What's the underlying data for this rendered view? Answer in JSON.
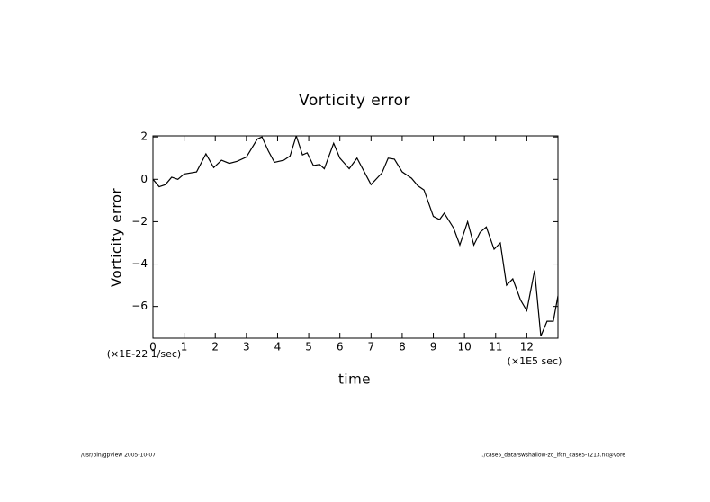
{
  "chart_data": {
    "type": "line",
    "title": "Vorticity error",
    "x_label": "time",
    "y_label": "Vorticity error",
    "x_unit": "(×1E5 sec)",
    "y_unit": "(×1E-22 1/sec)",
    "footer_left": "/usr/bin/gpview  2005-10-07",
    "footer_right": "../case5_data/swshallow-zd_lfcn_case5-T213.nc@vore",
    "xlim": [
      0,
      13
    ],
    "ylim": [
      -7.5,
      2.05
    ],
    "xticks": [
      0,
      1,
      2,
      3,
      4,
      5,
      6,
      7,
      8,
      9,
      10,
      11,
      12
    ],
    "yticks": [
      {
        "value": -6,
        "label": "−6"
      },
      {
        "value": -4,
        "label": "−4"
      },
      {
        "value": -2,
        "label": "−2"
      },
      0,
      2
    ],
    "grid": false,
    "series": [
      {
        "color": "#000000",
        "x": [
          0,
          0.2,
          0.4,
          0.6,
          0.8,
          1.0,
          1.4,
          1.7,
          1.95,
          2.2,
          2.45,
          2.7,
          3.0,
          3.35,
          3.5,
          3.7,
          3.9,
          4.2,
          4.4,
          4.6,
          4.8,
          4.95,
          5.15,
          5.35,
          5.5,
          5.8,
          6.0,
          6.3,
          6.55,
          7.0,
          7.35,
          7.55,
          7.75,
          8.0,
          8.3,
          8.5,
          8.7,
          9.0,
          9.2,
          9.35,
          9.65,
          9.85,
          10.1,
          10.3,
          10.5,
          10.7,
          10.95,
          11.15,
          11.35,
          11.55,
          11.8,
          12.0,
          12.25,
          12.45,
          12.65,
          12.85,
          13.0
        ],
        "values": [
          0,
          -0.35,
          -0.25,
          0.1,
          0,
          0.25,
          0.35,
          1.2,
          0.55,
          0.9,
          0.75,
          0.85,
          1.05,
          1.9,
          2.0,
          1.35,
          0.8,
          0.9,
          1.1,
          2.05,
          1.15,
          1.25,
          0.65,
          0.7,
          0.5,
          1.7,
          1.0,
          0.5,
          1.0,
          -0.25,
          0.3,
          1.0,
          0.95,
          0.35,
          0.05,
          -0.3,
          -0.5,
          -1.75,
          -1.9,
          -1.6,
          -2.3,
          -3.1,
          -2.0,
          -3.1,
          -2.5,
          -2.25,
          -3.3,
          -3.0,
          -5.0,
          -4.7,
          -5.7,
          -6.2,
          -4.3,
          -7.4,
          -6.7,
          -6.7,
          -5.5
        ]
      }
    ]
  }
}
